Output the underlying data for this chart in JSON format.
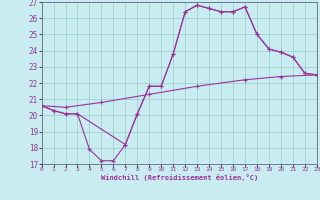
{
  "xlabel": "Windchill (Refroidissement éolien,°C)",
  "bg_color": "#c8ecf0",
  "line_color": "#993399",
  "grid_color": "#99cccc",
  "xmin": 0,
  "xmax": 23,
  "ymin": 17,
  "ymax": 27,
  "upper_x": [
    0,
    1,
    2,
    3,
    7,
    8,
    9,
    10,
    11,
    12,
    13,
    14,
    15,
    16,
    17,
    18,
    19,
    20,
    21,
    22,
    23
  ],
  "upper_y": [
    20.6,
    20.3,
    20.1,
    20.1,
    18.2,
    20.1,
    21.8,
    21.8,
    23.8,
    26.4,
    26.8,
    26.6,
    26.4,
    26.4,
    26.7,
    25.0,
    24.1,
    23.9,
    23.6,
    22.6,
    22.5
  ],
  "lower_x": [
    0,
    1,
    2,
    3,
    4,
    5,
    6,
    7,
    8,
    9,
    10,
    11,
    12,
    13,
    14,
    15,
    16,
    17,
    18,
    19,
    20,
    21,
    22,
    23
  ],
  "lower_y": [
    20.6,
    20.3,
    20.1,
    20.1,
    17.9,
    17.2,
    17.2,
    18.2,
    20.1,
    21.8,
    21.8,
    23.8,
    26.4,
    26.8,
    26.6,
    26.4,
    26.4,
    26.7,
    25.0,
    24.1,
    23.9,
    23.6,
    22.6,
    22.5
  ],
  "diag_x": [
    0,
    2,
    5,
    9,
    13,
    17,
    20,
    23
  ],
  "diag_y": [
    20.6,
    20.5,
    20.8,
    21.3,
    21.8,
    22.2,
    22.4,
    22.5
  ],
  "xticks": [
    0,
    1,
    2,
    3,
    4,
    5,
    6,
    7,
    8,
    9,
    10,
    11,
    12,
    13,
    14,
    15,
    16,
    17,
    18,
    19,
    20,
    21,
    22,
    23
  ],
  "yticks": [
    17,
    18,
    19,
    20,
    21,
    22,
    23,
    24,
    25,
    26,
    27
  ]
}
